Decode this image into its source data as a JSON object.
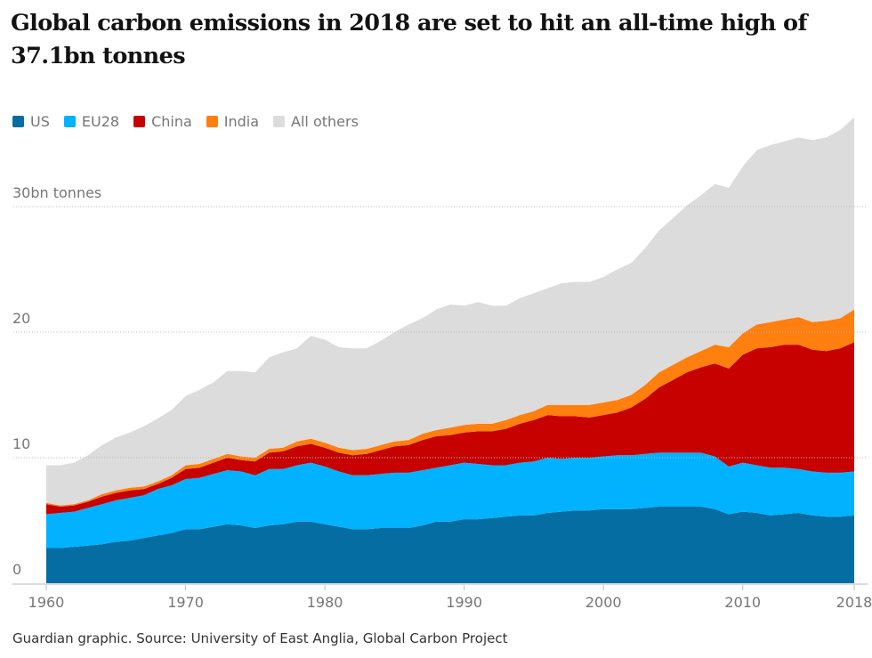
{
  "title": "Global carbon emissions in 2018 are set to hit an all-time high of 37.1bn tonnes",
  "source": "Guardian graphic. Source: University of East Anglia, Global Carbon Project",
  "chart_data": {
    "type": "area",
    "stacked": true,
    "title": "Global carbon emissions in 2018 are set to hit an all-time high of 37.1bn tonnes",
    "xlabel": "",
    "ylabel": "",
    "ylim": [
      0,
      37.5
    ],
    "xlim": [
      1960,
      2018
    ],
    "grid": true,
    "legend_position": "top-left",
    "y_ticks": [
      {
        "value": 0,
        "label": "0"
      },
      {
        "value": 10,
        "label": "10"
      },
      {
        "value": 20,
        "label": "20"
      },
      {
        "value": 30,
        "label": "30bn tonnes"
      }
    ],
    "x_ticks": [
      {
        "value": 1960,
        "label": "1960"
      },
      {
        "value": 1970,
        "label": "1970"
      },
      {
        "value": 1980,
        "label": "1980"
      },
      {
        "value": 1990,
        "label": "1990"
      },
      {
        "value": 2000,
        "label": "2000"
      },
      {
        "value": 2010,
        "label": "2010"
      },
      {
        "value": 2018,
        "label": "2018"
      }
    ],
    "x": [
      1960,
      1961,
      1962,
      1963,
      1964,
      1965,
      1966,
      1967,
      1968,
      1969,
      1970,
      1971,
      1972,
      1973,
      1974,
      1975,
      1976,
      1977,
      1978,
      1979,
      1980,
      1981,
      1982,
      1983,
      1984,
      1985,
      1986,
      1987,
      1988,
      1989,
      1990,
      1991,
      1992,
      1993,
      1994,
      1995,
      1996,
      1997,
      1998,
      1999,
      2000,
      2001,
      2002,
      2003,
      2004,
      2005,
      2006,
      2007,
      2008,
      2009,
      2010,
      2011,
      2012,
      2013,
      2014,
      2015,
      2016,
      2017,
      2018
    ],
    "series": [
      {
        "name": "US",
        "color": "#056da1",
        "values": [
          2.8,
          2.8,
          2.9,
          3.0,
          3.1,
          3.3,
          3.4,
          3.6,
          3.8,
          4.0,
          4.3,
          4.3,
          4.5,
          4.7,
          4.6,
          4.4,
          4.6,
          4.7,
          4.9,
          4.9,
          4.7,
          4.5,
          4.3,
          4.3,
          4.4,
          4.4,
          4.4,
          4.6,
          4.9,
          4.9,
          5.1,
          5.1,
          5.2,
          5.3,
          5.4,
          5.4,
          5.6,
          5.7,
          5.8,
          5.8,
          5.9,
          5.9,
          5.9,
          6.0,
          6.1,
          6.1,
          6.1,
          6.1,
          5.9,
          5.5,
          5.7,
          5.6,
          5.4,
          5.5,
          5.6,
          5.4,
          5.3,
          5.3,
          5.4
        ]
      },
      {
        "name": "EU28",
        "color": "#00b2ff",
        "values": [
          2.7,
          2.8,
          2.8,
          3.0,
          3.2,
          3.3,
          3.4,
          3.4,
          3.7,
          3.8,
          4.0,
          4.1,
          4.2,
          4.3,
          4.3,
          4.2,
          4.5,
          4.4,
          4.5,
          4.7,
          4.6,
          4.4,
          4.3,
          4.3,
          4.3,
          4.4,
          4.4,
          4.4,
          4.3,
          4.5,
          4.5,
          4.4,
          4.2,
          4.1,
          4.2,
          4.3,
          4.4,
          4.2,
          4.2,
          4.2,
          4.2,
          4.3,
          4.3,
          4.3,
          4.3,
          4.3,
          4.3,
          4.3,
          4.2,
          3.8,
          3.9,
          3.8,
          3.8,
          3.7,
          3.5,
          3.5,
          3.5,
          3.5,
          3.5
        ]
      },
      {
        "name": "China",
        "color": "#c70000",
        "values": [
          0.8,
          0.5,
          0.5,
          0.5,
          0.6,
          0.6,
          0.6,
          0.5,
          0.4,
          0.6,
          0.8,
          0.8,
          0.9,
          1.0,
          0.9,
          1.1,
          1.3,
          1.4,
          1.5,
          1.5,
          1.5,
          1.5,
          1.6,
          1.7,
          1.9,
          2.1,
          2.2,
          2.4,
          2.5,
          2.4,
          2.4,
          2.6,
          2.7,
          2.9,
          3.1,
          3.3,
          3.4,
          3.4,
          3.3,
          3.2,
          3.3,
          3.4,
          3.8,
          4.4,
          5.2,
          5.8,
          6.4,
          6.8,
          7.4,
          7.8,
          8.6,
          9.3,
          9.6,
          9.8,
          9.9,
          9.7,
          9.7,
          9.9,
          10.3
        ]
      },
      {
        "name": "India",
        "color": "#ff7f0f",
        "values": [
          0.1,
          0.1,
          0.1,
          0.1,
          0.2,
          0.2,
          0.2,
          0.2,
          0.2,
          0.2,
          0.3,
          0.3,
          0.3,
          0.3,
          0.3,
          0.3,
          0.3,
          0.3,
          0.4,
          0.4,
          0.4,
          0.4,
          0.4,
          0.4,
          0.4,
          0.4,
          0.4,
          0.5,
          0.5,
          0.6,
          0.6,
          0.6,
          0.6,
          0.7,
          0.7,
          0.7,
          0.8,
          0.9,
          0.9,
          1.0,
          1.0,
          1.0,
          1.0,
          1.1,
          1.2,
          1.2,
          1.2,
          1.3,
          1.5,
          1.7,
          1.7,
          1.9,
          2.0,
          2.0,
          2.2,
          2.2,
          2.4,
          2.4,
          2.6
        ]
      },
      {
        "name": "All others",
        "color": "#dcdcdc",
        "values": [
          3.0,
          3.2,
          3.3,
          3.6,
          3.9,
          4.2,
          4.4,
          4.8,
          5.0,
          5.2,
          5.5,
          5.9,
          6.1,
          6.6,
          6.8,
          6.8,
          7.3,
          7.6,
          7.4,
          8.2,
          8.2,
          8.0,
          8.1,
          8.0,
          8.3,
          8.7,
          9.2,
          9.2,
          9.6,
          9.8,
          9.5,
          9.7,
          9.4,
          9.1,
          9.3,
          9.4,
          9.3,
          9.7,
          9.8,
          9.8,
          10.0,
          10.4,
          10.5,
          10.9,
          11.3,
          11.7,
          12.1,
          12.4,
          12.8,
          12.7,
          13.3,
          13.9,
          14.1,
          14.2,
          14.3,
          14.5,
          14.6,
          15.0,
          15.3
        ]
      }
    ]
  }
}
